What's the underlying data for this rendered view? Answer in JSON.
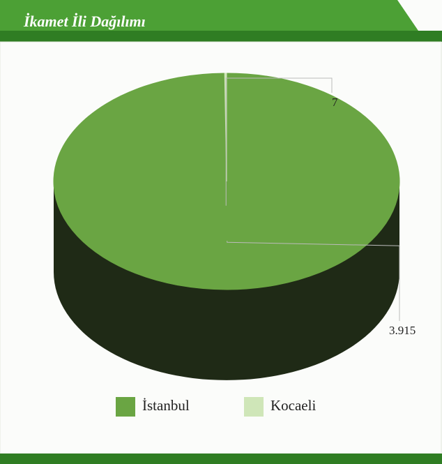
{
  "chart_data": {
    "type": "pie",
    "title": "İkamet İli Dağılımı",
    "categories": [
      "İstanbul",
      "Kocaeli"
    ],
    "values": [
      3915,
      7
    ],
    "value_labels": [
      "3.915",
      "7"
    ],
    "colors": [
      "#6aa543",
      "#cfe6b8"
    ],
    "legend": "bottom"
  }
}
